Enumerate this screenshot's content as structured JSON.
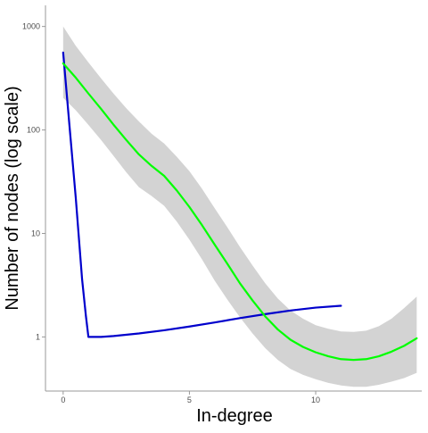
{
  "chart_data": {
    "type": "line",
    "title": "",
    "xlabel": "In-degree",
    "ylabel": "Number of nodes (log scale)",
    "xlim": [
      -0.7,
      14.2
    ],
    "ylim": [
      0.3,
      1600
    ],
    "y_scale": "log",
    "grid": false,
    "x_ticks": [
      0,
      5,
      10
    ],
    "x_tick_labels": [
      "0",
      "5",
      "10"
    ],
    "y_ticks": [
      1,
      10,
      100,
      1000
    ],
    "y_tick_labels": [
      "1",
      "10",
      "100",
      "1000"
    ],
    "colors": {
      "observed": "#0000cc",
      "smooth": "#00ff00",
      "band": "#d3d3d3",
      "axis": "#999999"
    },
    "series": [
      {
        "kind": "observed",
        "x": [
          0,
          0.25,
          0.5,
          0.75,
          0.9,
          1,
          1.5,
          2,
          3,
          4,
          5,
          6,
          7,
          8,
          9,
          10,
          11
        ],
        "y": [
          560,
          110,
          22,
          3.6,
          1.6,
          1.0,
          1.0,
          1.02,
          1.08,
          1.16,
          1.26,
          1.38,
          1.52,
          1.66,
          1.8,
          1.92,
          2.0
        ]
      },
      {
        "kind": "smooth",
        "x": [
          0,
          0.5,
          1,
          1.5,
          2,
          2.5,
          3,
          3.5,
          4,
          4.5,
          5,
          5.5,
          6,
          6.5,
          7,
          7.5,
          8,
          8.5,
          9,
          9.5,
          10,
          10.5,
          11,
          11.5,
          12,
          12.5,
          13,
          13.5,
          14
        ],
        "y": [
          440,
          320,
          225,
          160,
          112,
          80,
          58,
          45,
          36,
          26,
          18,
          12,
          7.8,
          5.1,
          3.3,
          2.25,
          1.58,
          1.18,
          0.94,
          0.8,
          0.71,
          0.65,
          0.61,
          0.6,
          0.61,
          0.65,
          0.72,
          0.82,
          0.97
        ],
        "lower": [
          205,
          155,
          112,
          80,
          56,
          39,
          28,
          23,
          18.5,
          13,
          8.7,
          5.6,
          3.5,
          2.3,
          1.55,
          1.08,
          0.78,
          0.6,
          0.49,
          0.43,
          0.39,
          0.36,
          0.34,
          0.33,
          0.33,
          0.345,
          0.37,
          0.4,
          0.45
        ],
        "upper": [
          1000,
          650,
          450,
          315,
          224,
          162,
          121,
          92,
          74,
          55,
          40,
          27,
          17.5,
          11.5,
          7.4,
          4.9,
          3.3,
          2.35,
          1.8,
          1.5,
          1.3,
          1.2,
          1.13,
          1.12,
          1.15,
          1.27,
          1.5,
          1.9,
          2.45
        ]
      }
    ]
  }
}
